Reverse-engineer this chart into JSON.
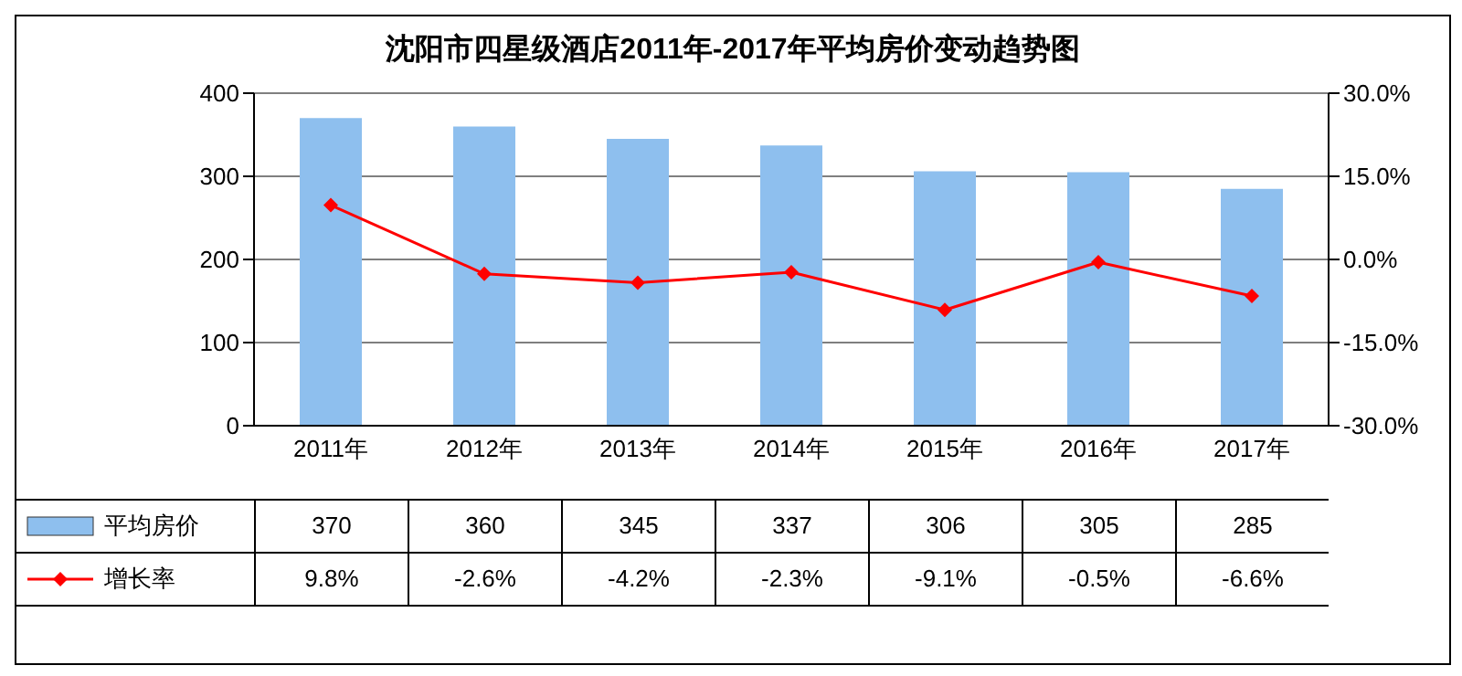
{
  "chart_data": {
    "type": "bar",
    "title": "沈阳市四星级酒店2011年-2017年平均房价变动趋势图",
    "categories": [
      "2011年",
      "2012年",
      "2013年",
      "2014年",
      "2015年",
      "2016年",
      "2017年"
    ],
    "series": [
      {
        "name": "平均房价",
        "color": "#8ebfee",
        "values": [
          370,
          360,
          345,
          337,
          306,
          305,
          285
        ],
        "value_labels": [
          "370",
          "360",
          "345",
          "337",
          "306",
          "305",
          "285"
        ]
      },
      {
        "name": "增长率",
        "type": "line",
        "axis": "y2",
        "color": "#ff0000",
        "marker": "diamond",
        "values": [
          9.8,
          -2.6,
          -4.2,
          -2.3,
          -9.1,
          -0.5,
          -6.6
        ],
        "value_labels": [
          "9.8%",
          "-2.6%",
          "-4.2%",
          "-2.3%",
          "-9.1%",
          "-0.5%",
          "-6.6%"
        ]
      }
    ],
    "ylim": [
      0,
      400
    ],
    "yticks": [
      0,
      100,
      200,
      300,
      400
    ],
    "y2lim": [
      -30,
      30
    ],
    "y2ticks": [
      {
        "value": -30,
        "label": "-30.0%"
      },
      {
        "value": -15,
        "label": "-15.0%"
      },
      {
        "value": 0,
        "label": "0.0%"
      },
      {
        "value": 15,
        "label": "15.0%"
      },
      {
        "value": 30,
        "label": "30.0%"
      }
    ],
    "grid": "y",
    "legend": "bottom"
  }
}
